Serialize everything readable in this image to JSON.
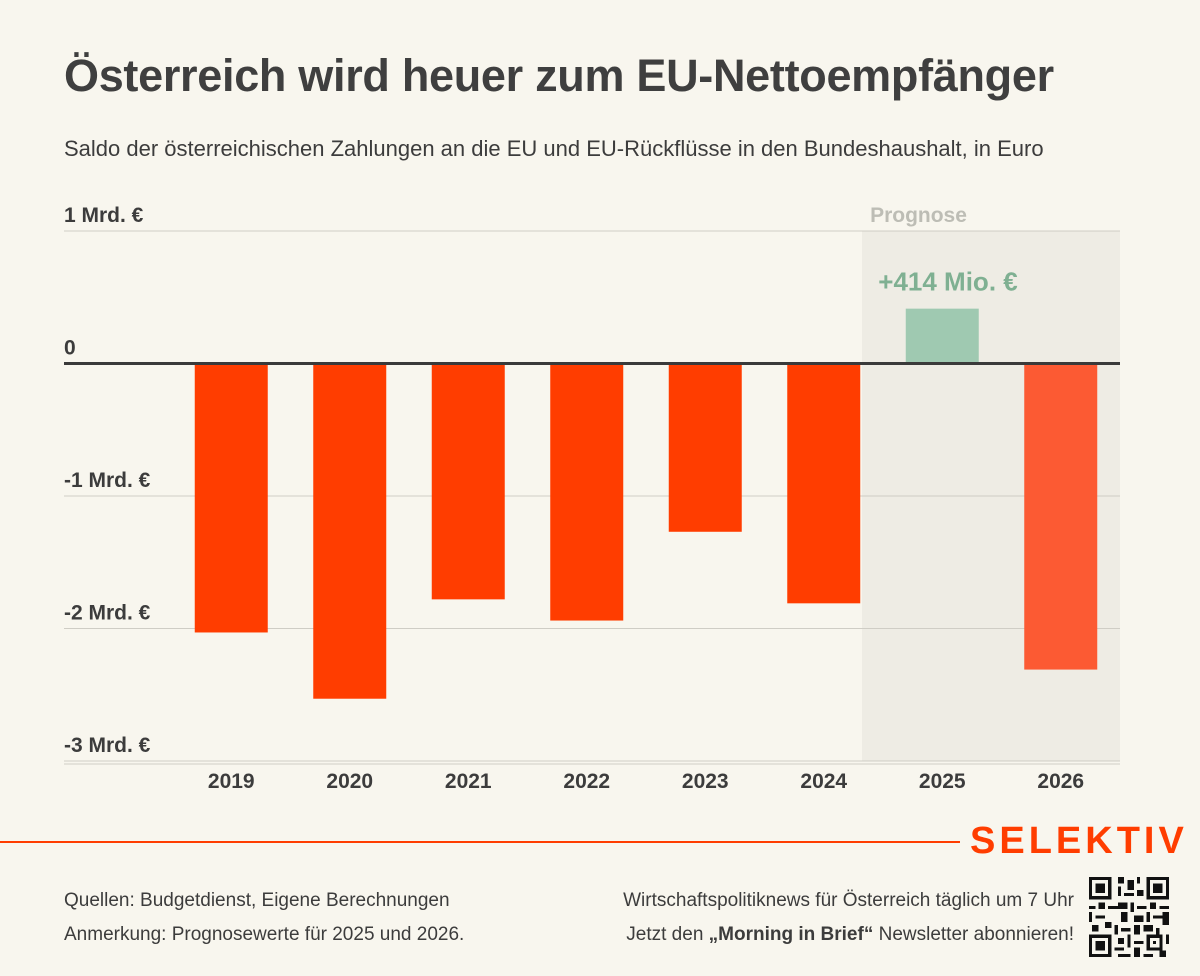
{
  "header": {
    "title": "Österreich wird heuer zum EU-Nettoempfänger",
    "subtitle": "Saldo der österreichischen Zahlungen an die EU und EU-Rückflüsse in den Bundeshaushalt, in Euro"
  },
  "chart_data": {
    "type": "bar",
    "categories": [
      "2019",
      "2020",
      "2021",
      "2022",
      "2023",
      "2024",
      "2025",
      "2026"
    ],
    "values": [
      -2.03,
      -2.53,
      -1.78,
      -1.94,
      -1.27,
      -1.81,
      0.414,
      -2.31
    ],
    "value_unit": "Mrd. €",
    "ylim": [
      -3,
      1
    ],
    "y_ticks": [
      {
        "value": 1,
        "label": "1 Mrd. €"
      },
      {
        "value": 0,
        "label": "0"
      },
      {
        "value": -1,
        "label": "-1 Mrd. €"
      },
      {
        "value": -2,
        "label": "-2 Mrd. €"
      },
      {
        "value": -3,
        "label": "-3 Mrd. €"
      }
    ],
    "forecast_categories": [
      "2025",
      "2026"
    ],
    "forecast_label": "Prognose",
    "annotations": [
      {
        "category": "2025",
        "text": "+414 Mio. €"
      }
    ],
    "colors": {
      "negative": "#ff3d00",
      "negative_forecast": "#fc5a33",
      "positive": "#9fc9b1",
      "positive_label": "#7fb092",
      "forecast_band": "#eeece4",
      "forecast_label": "#bdbdb5",
      "zero_line": "#3a3a3a",
      "grid": "#cfcdc5",
      "text": "#3c3c3c"
    },
    "grid": true
  },
  "footer": {
    "brand": "SELEKTIV",
    "sources_line": "Quellen: Budgetdienst, Eigene Berechnungen",
    "note_line": "Anmerkung: Prognosewerte für 2025 und 2026.",
    "promo_line1": "Wirtschaftspolitiknews für Österreich täglich um 7 Uhr",
    "promo_line2_prefix": "Jetzt den ",
    "promo_line2_bold": "„Morning in Brief“",
    "promo_line2_suffix": " Newsletter abonnieren!"
  }
}
